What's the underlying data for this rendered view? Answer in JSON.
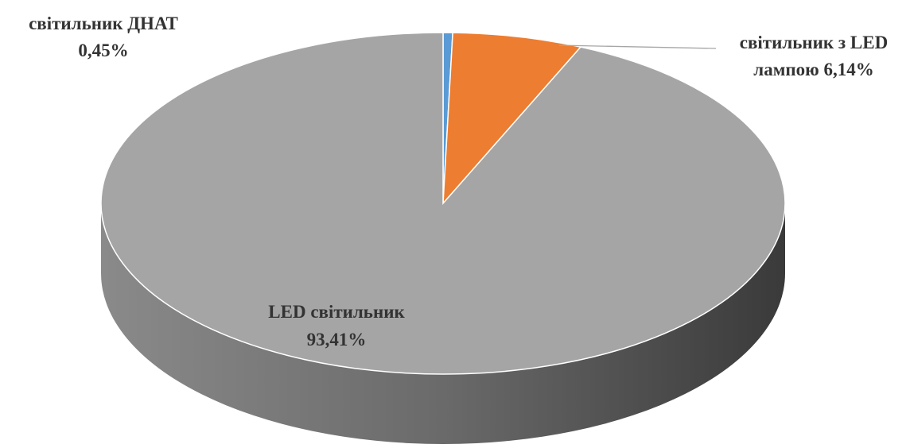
{
  "chart_data": {
    "type": "pie",
    "style": "3d",
    "slices": [
      {
        "label": "світильник ДНАТ",
        "value": 0.45,
        "value_label": "0,45%",
        "color": "#5b9bd5"
      },
      {
        "label": "світильник з LED лампою",
        "value": 6.14,
        "value_label": "6,14%",
        "color": "#ed7d31"
      },
      {
        "label": "LED світильник",
        "value": 93.41,
        "value_label": "93,41%",
        "color": "#a5a5a5"
      }
    ],
    "labels": {
      "dnat_line1": "світильник ДНАТ",
      "dnat_line2": "0,45%",
      "ledlamp_line1": "світильник з LED",
      "ledlamp_line2": "лампою 6,14%",
      "led_line1": "LED світильник",
      "led_line2": "93,41%"
    }
  }
}
